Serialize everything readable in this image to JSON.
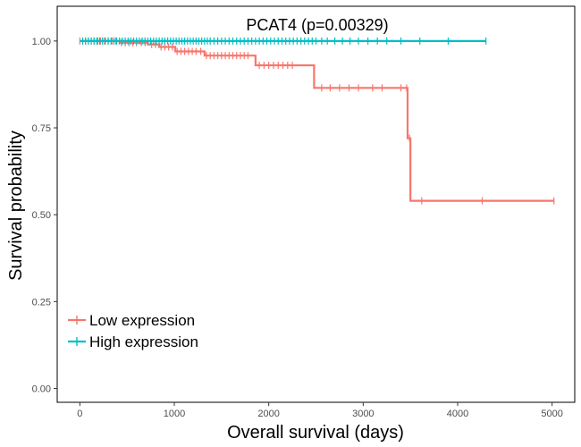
{
  "chart_data": {
    "type": "line",
    "title": "PCAT4 (p=0.00329)",
    "xlabel": "Overall survival (days)",
    "ylabel": "Survival probability",
    "xlim": [
      -240,
      5240
    ],
    "ylim": [
      -0.04,
      1.1
    ],
    "xticks": [
      0,
      1000,
      2000,
      3000,
      4000,
      5000
    ],
    "xtick_labels": [
      "0",
      "1000",
      "2000",
      "3000",
      "4000",
      "5000"
    ],
    "yticks": [
      0,
      0.25,
      0.5,
      0.75,
      1.0
    ],
    "ytick_labels": [
      "0.00",
      "0.25",
      "0.50",
      "0.75",
      "1.00"
    ],
    "grid": false,
    "legend_position": "bottom-left",
    "series": [
      {
        "name": "Low expression",
        "color": "#F8766D",
        "steps": [
          [
            0,
            1.0
          ],
          [
            420,
            0.995
          ],
          [
            720,
            0.99
          ],
          [
            840,
            0.983
          ],
          [
            1010,
            0.97
          ],
          [
            1320,
            0.958
          ],
          [
            1860,
            0.93
          ],
          [
            2480,
            0.865
          ],
          [
            3450,
            0.865
          ],
          [
            3470,
            0.72
          ],
          [
            3500,
            0.54
          ],
          [
            5020,
            0.54
          ]
        ],
        "censor_x": [
          0,
          30,
          60,
          90,
          120,
          150,
          190,
          220,
          260,
          300,
          340,
          380,
          440,
          480,
          520,
          560,
          600,
          650,
          690,
          760,
          800,
          860,
          900,
          940,
          980,
          1030,
          1070,
          1110,
          1150,
          1190,
          1230,
          1280,
          1340,
          1380,
          1420,
          1460,
          1500,
          1540,
          1580,
          1620,
          1660,
          1700,
          1740,
          1780,
          1900,
          1950,
          2000,
          2050,
          2100,
          2150,
          2200,
          2250,
          2560,
          2650,
          2750,
          2850,
          2950,
          3100,
          3200,
          3400,
          3460,
          3490,
          3620,
          4260,
          5020
        ]
      },
      {
        "name": "High expression",
        "color": "#00BFC4",
        "steps": [
          [
            0,
            1.0
          ],
          [
            4300,
            1.0
          ]
        ],
        "censor_x": [
          30,
          60,
          90,
          120,
          150,
          180,
          210,
          240,
          270,
          300,
          330,
          360,
          390,
          420,
          450,
          480,
          510,
          540,
          570,
          600,
          630,
          660,
          690,
          720,
          750,
          780,
          810,
          840,
          870,
          900,
          930,
          960,
          990,
          1020,
          1050,
          1080,
          1110,
          1140,
          1170,
          1200,
          1230,
          1260,
          1290,
          1320,
          1350,
          1380,
          1420,
          1460,
          1500,
          1540,
          1580,
          1620,
          1660,
          1700,
          1740,
          1780,
          1820,
          1860,
          1900,
          1940,
          1980,
          2020,
          2060,
          2100,
          2140,
          2180,
          2220,
          2260,
          2300,
          2340,
          2380,
          2420,
          2460,
          2500,
          2560,
          2620,
          2700,
          2780,
          2860,
          2950,
          3050,
          3150,
          3250,
          3400,
          3600,
          3900,
          4300
        ]
      }
    ]
  }
}
